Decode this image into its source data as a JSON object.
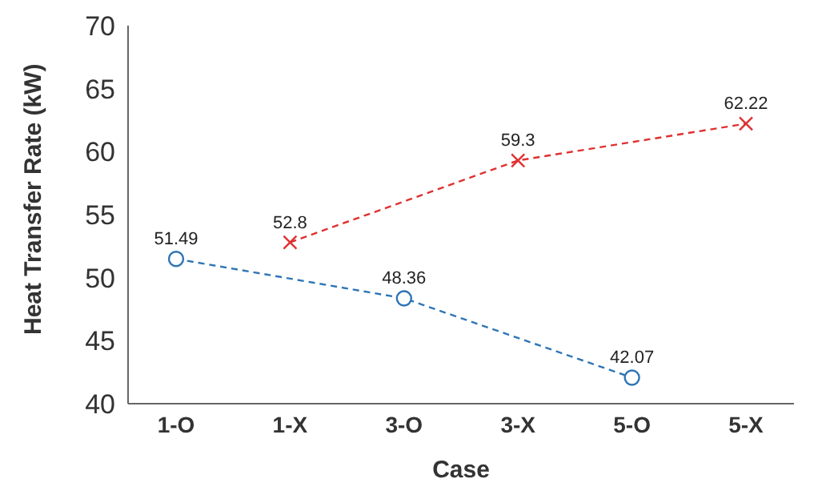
{
  "chart_data": {
    "type": "line",
    "xlabel": "Case",
    "ylabel": "Heat Transfer Rate (kW)",
    "categories": [
      "1-O",
      "1-X",
      "3-O",
      "3-X",
      "5-O",
      "5-X"
    ],
    "series": [
      {
        "color": "#2e75b6",
        "marker": "circle",
        "line_style": "dashed",
        "values": [
          51.49,
          null,
          48.36,
          null,
          42.07,
          null
        ]
      },
      {
        "color": "#e03030",
        "marker": "cross",
        "line_style": "dashed",
        "values": [
          null,
          52.8,
          null,
          59.3,
          null,
          62.22
        ]
      }
    ],
    "ylim": [
      40,
      70
    ],
    "yticks": [
      40,
      45,
      50,
      55,
      60,
      65,
      70
    ],
    "data_labels": true
  }
}
